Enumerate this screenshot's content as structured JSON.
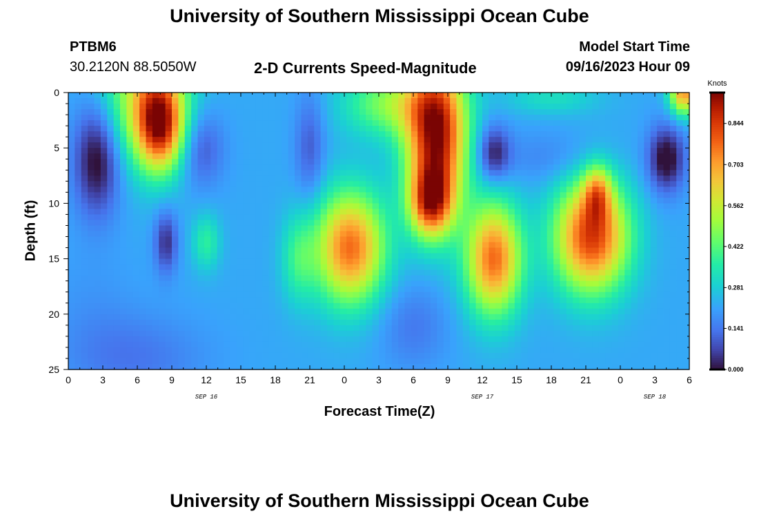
{
  "header": {
    "title": "University of Southern Mississippi Ocean Cube",
    "station_id": "PTBM6",
    "coords": "30.2120N  88.5050W",
    "subtitle": "2-D Currents Speed-Magnitude",
    "model_start_label": "Model Start Time",
    "model_start_value": "09/16/2023 Hour 09"
  },
  "footer": {
    "title": "University of Southern Mississippi Ocean Cube"
  },
  "chart_data": {
    "type": "heatmap",
    "title": "2-D Currents Speed-Magnitude",
    "xlabel": "Forecast Time(Z)",
    "ylabel": "Depth (ft)",
    "x_range_hours": [
      0,
      54
    ],
    "y_range_ft": [
      0,
      25
    ],
    "y_ticks": [
      "0",
      "5",
      "10",
      "15",
      "20",
      "25"
    ],
    "x_ticks": [
      "0",
      "3",
      "6",
      "9",
      "12",
      "15",
      "18",
      "21",
      "0",
      "3",
      "6",
      "9",
      "12",
      "15",
      "18",
      "21",
      "0",
      "3",
      "6"
    ],
    "date_labels": [
      {
        "label": "SEP 16",
        "hour": 12
      },
      {
        "label": "SEP 17",
        "hour": 36
      },
      {
        "label": "SEP 18",
        "hour": 51
      }
    ],
    "colorbar": {
      "unit": "Knots",
      "min": 0,
      "max": 0.95,
      "ticks": [
        "0.000",
        "0.141",
        "0.281",
        "0.422",
        "0.562",
        "0.703",
        "0.844"
      ]
    },
    "field_features": [
      {
        "hour": 2.5,
        "depth": 6,
        "speed": 0.0
      },
      {
        "hour": 8.0,
        "depth": 2.5,
        "speed": 0.8
      },
      {
        "hour": 11.5,
        "depth": 5.5,
        "speed": 0.08
      },
      {
        "hour": 21.0,
        "depth": 5.0,
        "speed": 0.12
      },
      {
        "hour": 8.5,
        "depth": 13.5,
        "speed": 0.06
      },
      {
        "hour": 12.0,
        "depth": 13.5,
        "speed": 0.38
      },
      {
        "hour": 23.5,
        "depth": 14.0,
        "speed": 0.68
      },
      {
        "hour": 6.0,
        "depth": 3.5,
        "speed": 0.86
      },
      {
        "hour": 6.0,
        "depth": 23.0,
        "speed": 0.06
      },
      {
        "hour": 13.0,
        "depth": 15.0,
        "speed": 0.7
      },
      {
        "hour": 21.5,
        "depth": 14.0,
        "speed": 0.72
      },
      {
        "hour": 12.5,
        "depth": 5.5,
        "speed": 0.04
      },
      {
        "hour": 3.5,
        "depth": 6.0,
        "speed": 0.0
      },
      {
        "hour": 0.0,
        "depth": 24.5,
        "speed": 0.1
      }
    ]
  }
}
